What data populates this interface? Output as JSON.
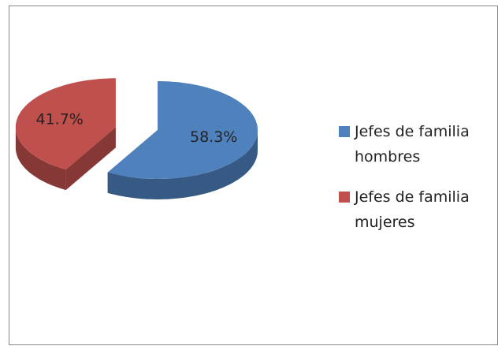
{
  "chart_data": {
    "type": "pie",
    "categories": [
      "Jefes de familia hombres",
      "Jefes de familia mujeres"
    ],
    "values": [
      58.3,
      41.7
    ],
    "value_labels": [
      "58.3%",
      "41.7%"
    ],
    "colors": [
      "#4f81bd",
      "#c0504d"
    ],
    "exploded": [
      false,
      true
    ],
    "legend": "right"
  }
}
